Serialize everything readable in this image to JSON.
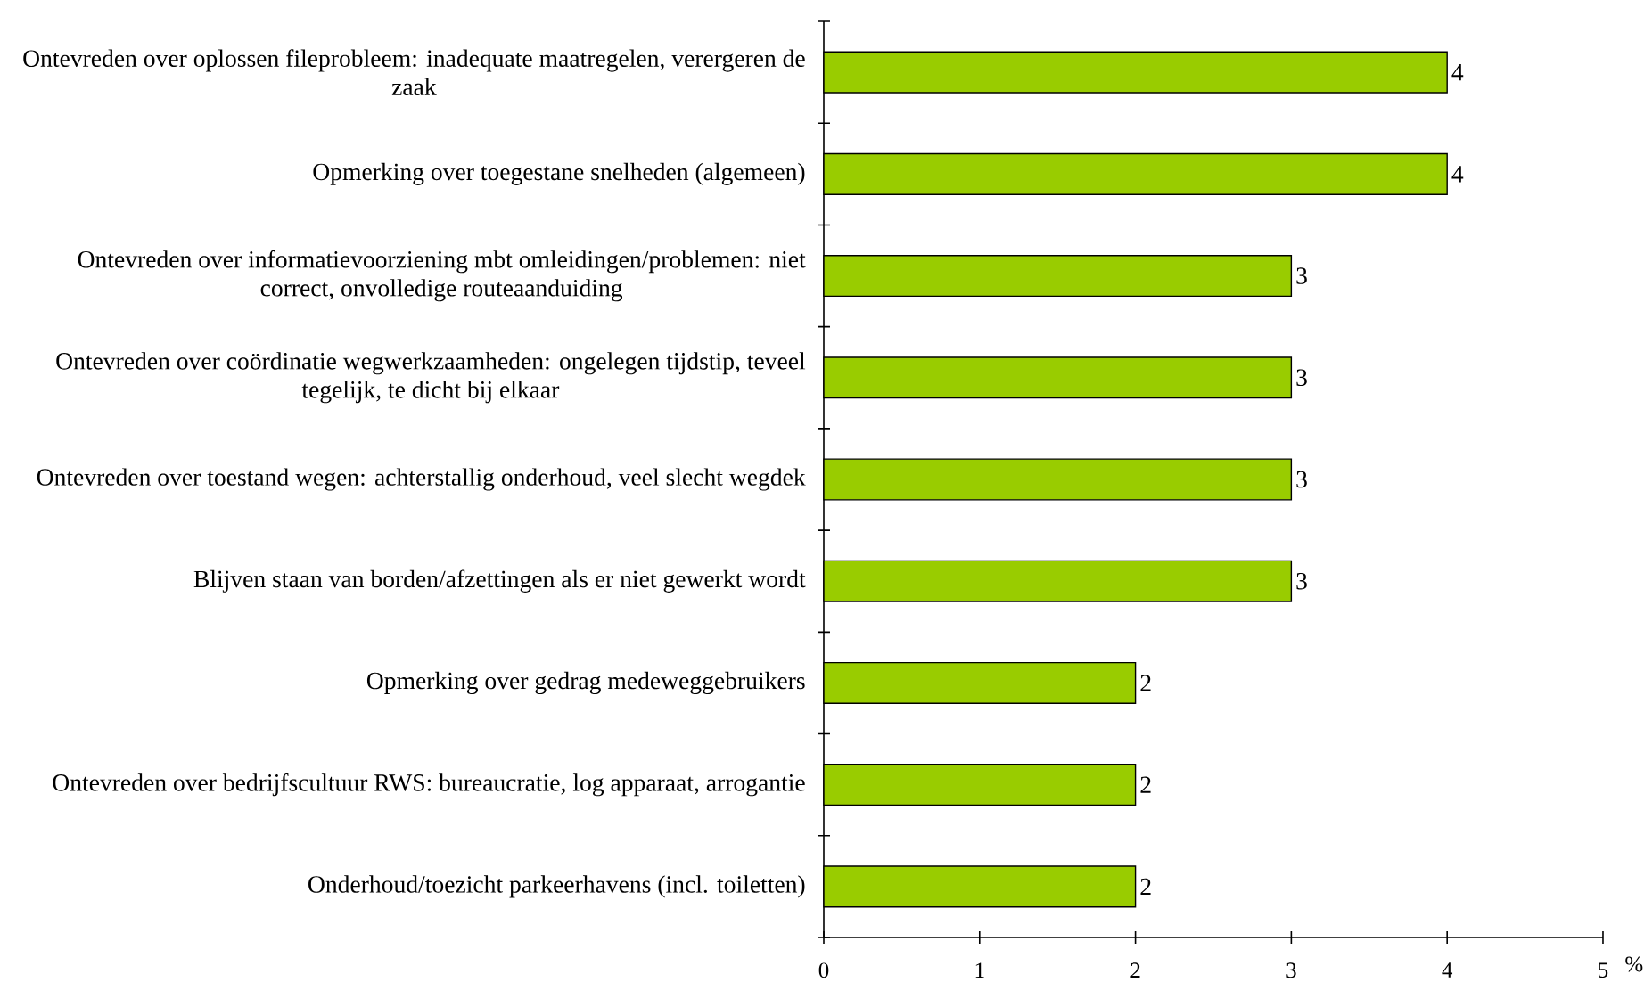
{
  "chart_data": {
    "type": "bar",
    "orientation": "horizontal",
    "categories": [
      "Ontevreden over oplossen fileprobleem: inadequate maatregelen, verergeren de zaak",
      "Opmerking over toegestane snelheden (algemeen)",
      "Ontevreden over informatievoorziening mbt omleidingen/problemen: niet correct, onvolledige routeaanduiding",
      "Ontevreden over coördinatie wegwerkzaamheden: ongelegen tijdstip, teveel tegelijk, te dicht bij elkaar",
      "Ontevreden over toestand wegen: achterstallig onderhoud, veel slecht wegdek",
      "Blijven staan van borden/afzettingen als er niet gewerkt wordt",
      "Opmerking over gedrag medeweggebruikers",
      "Ontevreden over bedrijfscultuur RWS: bureaucratie, log apparaat, arrogantie",
      "Onderhoud/toezicht parkeerhavens (incl. toiletten)"
    ],
    "values": [
      4,
      4,
      3,
      3,
      3,
      3,
      2,
      2,
      2
    ],
    "color": "#99cc00",
    "xlim": [
      0,
      5
    ],
    "xticks": [
      0,
      1,
      2,
      3,
      4,
      5
    ],
    "xlabel": "%",
    "data_labels": true
  }
}
